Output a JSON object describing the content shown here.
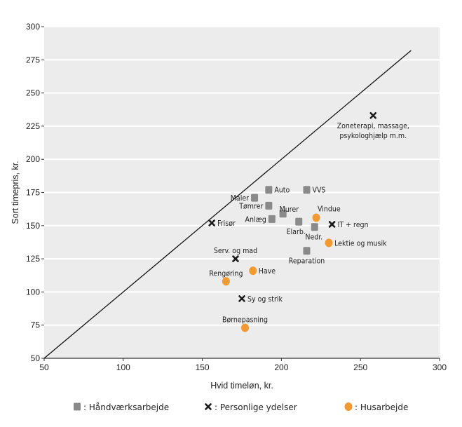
{
  "chart_data": {
    "type": "scatter",
    "xlabel": "Hvid timeløn, kr.",
    "ylabel": "Sort timepris, kr.",
    "xlim": [
      50,
      300
    ],
    "ylim": [
      50,
      300
    ],
    "xticks": [
      50,
      100,
      150,
      200,
      250,
      300
    ],
    "yticks": [
      50,
      75,
      100,
      125,
      150,
      175,
      200,
      225,
      250,
      275,
      300
    ],
    "grid": "horizontal",
    "reference_line": {
      "from": [
        50,
        50
      ],
      "to": [
        282,
        282
      ]
    },
    "colors": {
      "background": "#ececec",
      "grid": "#ffffff",
      "haandvaerk": "#8a8a8a",
      "personlige": "#1a1a1a",
      "hus": "#f29a32"
    },
    "legend_position": "bottom",
    "series": [
      {
        "name": "Håndværksarbejde",
        "legend_label": ": Håndværksarbejde",
        "marker": "square",
        "points": [
          {
            "label": "Maler",
            "x": 183,
            "y": 171,
            "label_pos": "left"
          },
          {
            "label": "Auto",
            "x": 192,
            "y": 177,
            "label_pos": "right"
          },
          {
            "label": "VVS",
            "x": 216,
            "y": 177,
            "label_pos": "right"
          },
          {
            "label": "Tømrer",
            "x": 192,
            "y": 165,
            "label_pos": "left"
          },
          {
            "label": "Murer",
            "x": 201,
            "y": 159,
            "label_pos": "right-up"
          },
          {
            "label": "Anlæg",
            "x": 194,
            "y": 155,
            "label_pos": "left"
          },
          {
            "label": "Elarb.",
            "x": 211,
            "y": 153,
            "label_pos": "below-left"
          },
          {
            "label": "Nedr.",
            "x": 221,
            "y": 149,
            "label_pos": "below-right"
          },
          {
            "label": "Reparation",
            "x": 216,
            "y": 131,
            "label_pos": "below"
          }
        ]
      },
      {
        "name": "Personlige ydelser",
        "legend_label": ": Personlige ydelser",
        "marker": "cross",
        "points": [
          {
            "label": "Zoneterapi, massage,",
            "label2": "psykologhjælp m.m.",
            "x": 258,
            "y": 233,
            "label_pos": "below"
          },
          {
            "label": "Frisør",
            "x": 156,
            "y": 152,
            "label_pos": "right"
          },
          {
            "label": "IT + regn",
            "x": 232,
            "y": 151,
            "label_pos": "right"
          },
          {
            "label": "Serv. og mad",
            "x": 171,
            "y": 125,
            "label_pos": "above"
          },
          {
            "label": "Sy og strik",
            "x": 175,
            "y": 95,
            "label_pos": "right"
          }
        ]
      },
      {
        "name": "Husarbejde",
        "legend_label": ": Husarbejde",
        "marker": "circle",
        "points": [
          {
            "label": "Vindue",
            "x": 222,
            "y": 156,
            "label_pos": "above-right"
          },
          {
            "label": "Lektie og musik",
            "x": 230,
            "y": 137,
            "label_pos": "right"
          },
          {
            "label": "Have",
            "x": 182,
            "y": 116,
            "label_pos": "right"
          },
          {
            "label": "Rengøring",
            "x": 165,
            "y": 108,
            "label_pos": "above"
          },
          {
            "label": "Børnepasning",
            "x": 177,
            "y": 73,
            "label_pos": "above"
          }
        ]
      }
    ]
  }
}
